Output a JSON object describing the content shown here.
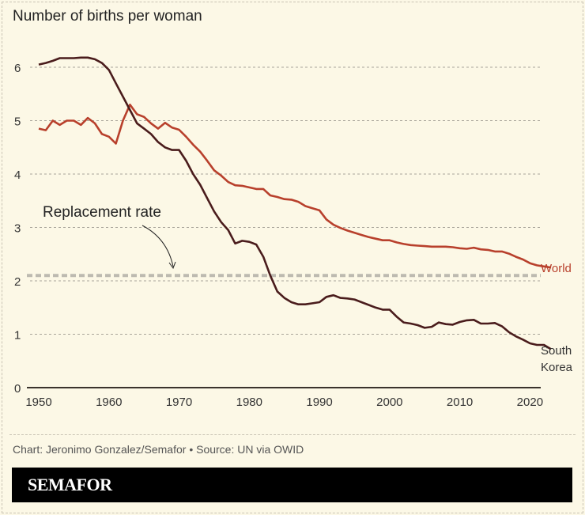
{
  "colors": {
    "world": "#b8402c",
    "korea": "#4a1c1c",
    "replacement": "#bdbab0",
    "background": "#fcf8e6"
  },
  "credit": "Chart: Jeronimo Gonzalez/Semafor • Source: UN via OWID",
  "brand": "SEMAFOR",
  "chart_data": {
    "type": "line",
    "title": "Number of births per woman",
    "xlim": [
      1950,
      2024
    ],
    "ylim": [
      0,
      6
    ],
    "xticks": [
      1950,
      1960,
      1970,
      1980,
      1990,
      2000,
      2010,
      2020
    ],
    "yticks": [
      0,
      1,
      2,
      3,
      4,
      5,
      6
    ],
    "grid": true,
    "reference_line": {
      "label": "Replacement rate",
      "value": 2.1
    },
    "x": [
      1950,
      1951,
      1952,
      1953,
      1954,
      1955,
      1956,
      1957,
      1958,
      1959,
      1960,
      1961,
      1962,
      1963,
      1964,
      1965,
      1966,
      1967,
      1968,
      1969,
      1970,
      1971,
      1972,
      1973,
      1974,
      1975,
      1976,
      1977,
      1978,
      1979,
      1980,
      1981,
      1982,
      1983,
      1984,
      1985,
      1986,
      1987,
      1988,
      1989,
      1990,
      1991,
      1992,
      1993,
      1994,
      1995,
      1996,
      1997,
      1998,
      1999,
      2000,
      2001,
      2002,
      2003,
      2004,
      2005,
      2006,
      2007,
      2008,
      2009,
      2010,
      2011,
      2012,
      2013,
      2014,
      2015,
      2016,
      2017,
      2018,
      2019,
      2020,
      2021,
      2022,
      2023
    ],
    "series": [
      {
        "name": "World",
        "values": [
          4.85,
          4.82,
          5.0,
          4.92,
          5.0,
          5.0,
          4.92,
          5.05,
          4.95,
          4.75,
          4.7,
          4.57,
          5.0,
          5.3,
          5.12,
          5.07,
          4.95,
          4.85,
          4.96,
          4.87,
          4.83,
          4.7,
          4.55,
          4.42,
          4.25,
          4.07,
          3.97,
          3.85,
          3.79,
          3.78,
          3.75,
          3.72,
          3.72,
          3.6,
          3.57,
          3.53,
          3.52,
          3.48,
          3.4,
          3.36,
          3.32,
          3.15,
          3.05,
          2.99,
          2.94,
          2.9,
          2.86,
          2.82,
          2.79,
          2.76,
          2.76,
          2.72,
          2.69,
          2.67,
          2.66,
          2.65,
          2.64,
          2.64,
          2.64,
          2.63,
          2.61,
          2.6,
          2.62,
          2.59,
          2.58,
          2.55,
          2.55,
          2.51,
          2.45,
          2.4,
          2.33,
          2.29,
          2.27,
          2.25
        ]
      },
      {
        "name": "South Korea",
        "values": [
          6.05,
          6.08,
          6.12,
          6.17,
          6.17,
          6.17,
          6.18,
          6.18,
          6.15,
          6.08,
          5.95,
          5.7,
          5.45,
          5.2,
          4.95,
          4.85,
          4.75,
          4.6,
          4.5,
          4.45,
          4.45,
          4.25,
          4.0,
          3.8,
          3.55,
          3.3,
          3.1,
          2.95,
          2.7,
          2.75,
          2.73,
          2.68,
          2.45,
          2.1,
          1.8,
          1.68,
          1.6,
          1.56,
          1.56,
          1.58,
          1.6,
          1.7,
          1.73,
          1.68,
          1.67,
          1.65,
          1.6,
          1.55,
          1.5,
          1.46,
          1.46,
          1.33,
          1.22,
          1.2,
          1.17,
          1.12,
          1.14,
          1.22,
          1.19,
          1.18,
          1.23,
          1.26,
          1.27,
          1.2,
          1.2,
          1.21,
          1.15,
          1.04,
          0.96,
          0.9,
          0.83,
          0.8,
          0.8,
          0.72
        ]
      }
    ],
    "series_labels": {
      "world": "World",
      "korea_line1": "South",
      "korea_line2": "Korea"
    }
  }
}
